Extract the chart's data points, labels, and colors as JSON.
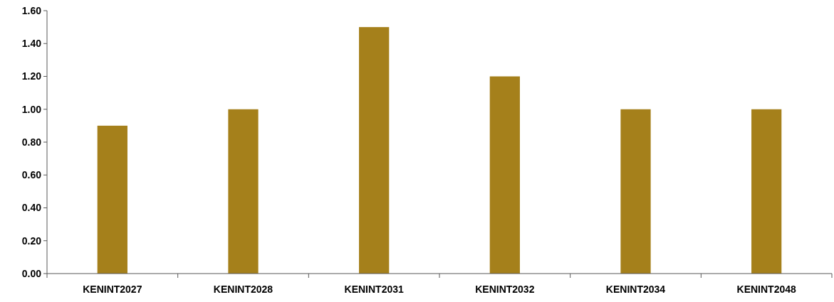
{
  "chart_data": {
    "type": "bar",
    "categories": [
      "KENINT2027",
      "KENINT2028",
      "KENINT2031",
      "KENINT2032",
      "KENINT2034",
      "KENINT2048"
    ],
    "values": [
      0.9,
      1.0,
      1.5,
      1.2,
      1.0,
      1.0
    ],
    "color": "#a5801b",
    "ylim": [
      0,
      1.6
    ],
    "yticks": [
      {
        "value": 0,
        "label": "0.00"
      },
      {
        "value": 0.2,
        "label": "0.20"
      },
      {
        "value": 0.4,
        "label": "0.40"
      },
      {
        "value": 0.6,
        "label": "0.60"
      },
      {
        "value": 0.8,
        "label": "0.80"
      },
      {
        "value": 1.0,
        "label": "1.00"
      },
      {
        "value": 1.2,
        "label": "1.20"
      },
      {
        "value": 1.4,
        "label": "1.40"
      },
      {
        "value": 1.6,
        "label": "1.60"
      }
    ],
    "grid": false
  }
}
